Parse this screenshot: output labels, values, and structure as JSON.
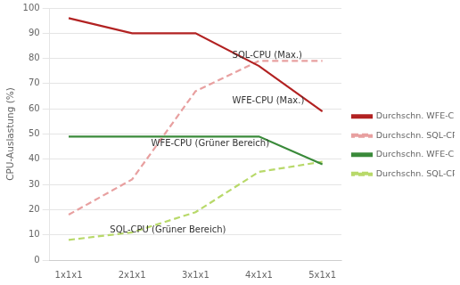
{
  "chart_data": {
    "type": "line",
    "x": [
      1,
      2,
      3,
      4,
      5
    ],
    "series": [
      {
        "name": "Durchschn. WFE-CPU (Max.)",
        "color": "#b22222",
        "line_style": "solid",
        "values": [
          96,
          90,
          90,
          77,
          59
        ]
      },
      {
        "name": "Durchschn. SQL-CPU (Max.)",
        "color": "#e8a0a0",
        "line_style": "dashed",
        "values": [
          18,
          32,
          67,
          79,
          79
        ]
      },
      {
        "name": "Durchschn. WFE-CPU (Grüner Bereich)",
        "color": "#3a8a3a",
        "line_style": "solid",
        "values": [
          49,
          49,
          49,
          49,
          38
        ]
      },
      {
        "name": "Durchschn. SQL-CPU (Grüner Bereich)",
        "color": "#b8d96a",
        "line_style": "dashed",
        "values": [
          8,
          11,
          19,
          35,
          39
        ]
      }
    ],
    "xlim": [
      0.7,
      5.3
    ],
    "xticks": [
      {
        "value": 1,
        "label": "1x1x1"
      },
      {
        "value": 2,
        "label": "2x1x1"
      },
      {
        "value": 3,
        "label": "3x1x1"
      },
      {
        "value": 4,
        "label": "4x1x1"
      },
      {
        "value": 5,
        "label": "5x1x1"
      }
    ],
    "ylabel": "CPU-Auslastung (%)",
    "ylim": [
      0,
      100
    ],
    "yticks": [
      0,
      10,
      20,
      30,
      40,
      50,
      60,
      70,
      80,
      90,
      100
    ],
    "grid": "y",
    "legend": "right",
    "annotations": [
      {
        "text": "SQL-CPU (Max.)",
        "x": 3.58,
        "y": 81
      },
      {
        "text": "WFE-CPU (Max.)",
        "x": 3.58,
        "y": 63
      },
      {
        "text": "WFE-CPU (Grüner Bereich)",
        "x": 2.3,
        "y": 46
      },
      {
        "text": "SQL-CPU (Grüner Bereich)",
        "x": 1.65,
        "y": 12
      }
    ]
  }
}
